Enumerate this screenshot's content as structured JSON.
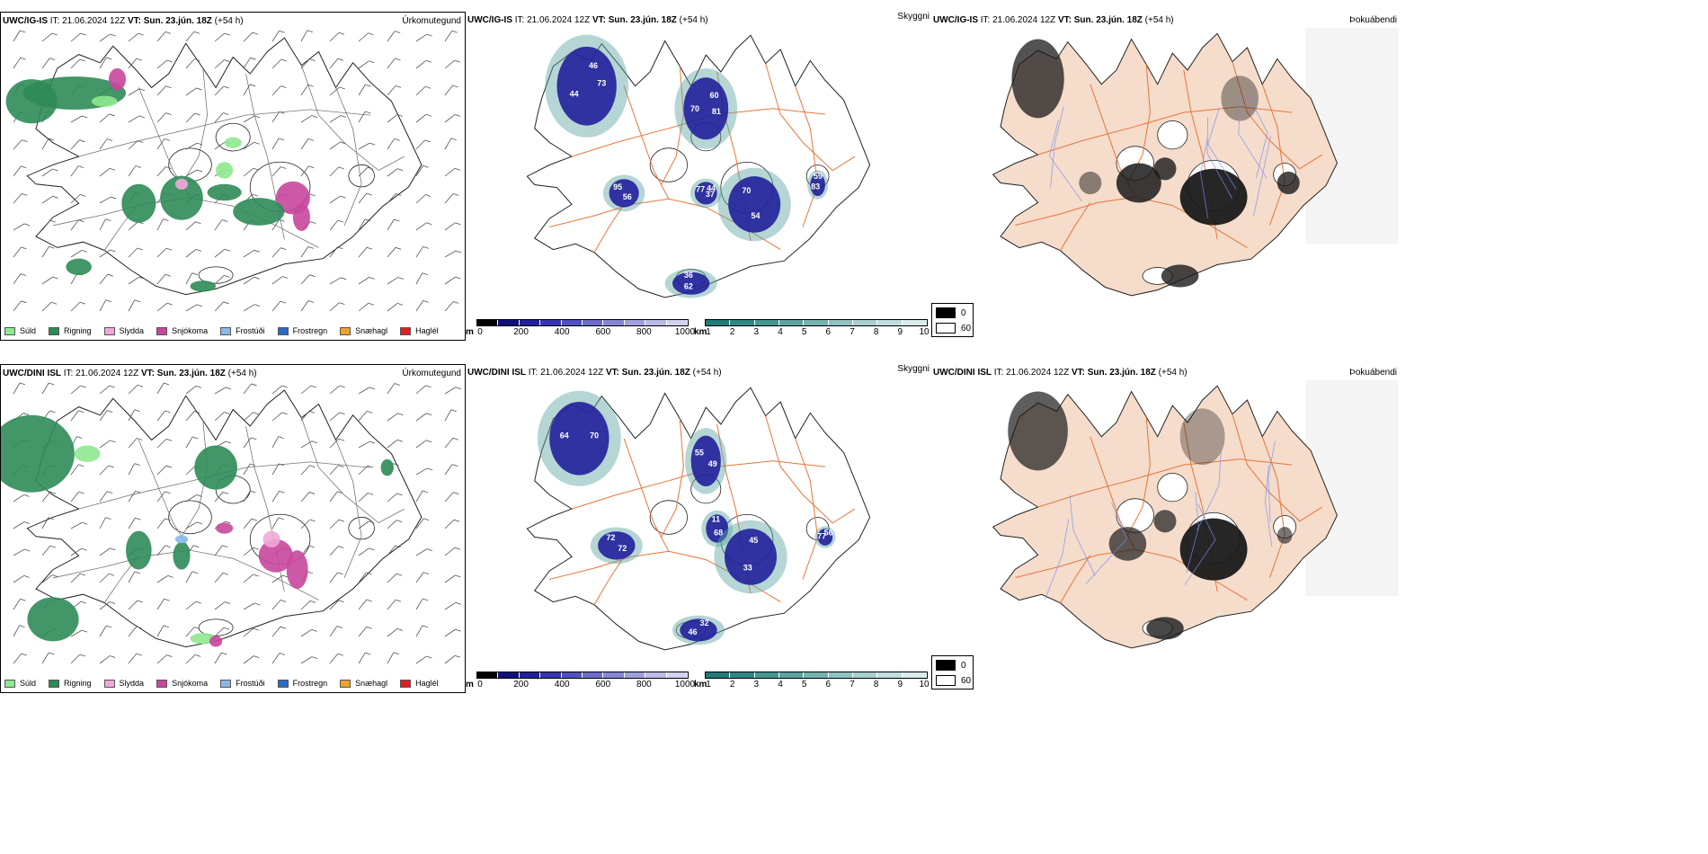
{
  "colors": {
    "drizzle": "#8fe88f",
    "rain": "#2e8b57",
    "sleet": "#f0a8d8",
    "snow": "#c8479c",
    "freezing_drizzle": "#8ab8ea",
    "freezing_rain": "#2c6bc4",
    "snow_grains": "#f0a030",
    "hail": "#e02020",
    "road": "#e8763a",
    "land_tint": "#f5dccb",
    "cloud_shade": "#1a1a1a",
    "coast": "#222222"
  },
  "rows": [
    {
      "model": "UWC/IG-IS",
      "left_title": "Úrkomutegund",
      "mid_title": "Skyggni",
      "right_title": "Þokuábendi",
      "visibility_labels": [
        "73",
        "81",
        "37",
        "56",
        "54",
        "62",
        "83",
        "44",
        "70",
        "77",
        "95",
        "70",
        "36",
        "59",
        "46",
        "60",
        "44"
      ]
    },
    {
      "model": "UWC/DINI ISL",
      "left_title": "Úrkomutegund",
      "mid_title": "Skyggni",
      "right_title": "Þokuábendi",
      "visibility_labels": [
        "70",
        "49",
        "72",
        "68",
        "33",
        "46",
        "77",
        "64",
        "55",
        "72",
        "11",
        "45",
        "32",
        "56"
      ]
    }
  ],
  "time": {
    "it_label": "IT:",
    "it_value": "21.06.2024 12Z",
    "vt_label": "VT:",
    "vt_value": "Sun. 23.jún. 18Z",
    "lead": "(+54 h)"
  },
  "precip_legend": [
    {
      "label": "Súld",
      "color_key": "drizzle"
    },
    {
      "label": "Rigning",
      "color_key": "rain"
    },
    {
      "label": "Slydda",
      "color_key": "sleet"
    },
    {
      "label": "Snjókoma",
      "color_key": "snow"
    },
    {
      "label": "Frostúði",
      "color_key": "freezing_drizzle"
    },
    {
      "label": "Frostregn",
      "color_key": "freezing_rain"
    },
    {
      "label": "Snæhagl",
      "color_key": "snow_grains"
    },
    {
      "label": "Haglél",
      "color_key": "hail"
    }
  ],
  "height_colorbar": {
    "unit": "m",
    "ticks": [
      "0",
      "200",
      "400",
      "600",
      "800",
      "1000"
    ],
    "colors": [
      "#000000",
      "#10107a",
      "#20209a",
      "#3535b0",
      "#5050c0",
      "#6b6bcc",
      "#8686d6",
      "#a0a0de",
      "#bbbbe8",
      "#d2d2f0"
    ]
  },
  "visibility_colorbar": {
    "unit": "km",
    "ticks": [
      "1",
      "2",
      "3",
      "4",
      "5",
      "6",
      "7",
      "8",
      "9",
      "10"
    ],
    "colors": [
      "#1f7a78",
      "#2e8885",
      "#449694",
      "#5ca4a2",
      "#76b3b1",
      "#8fc2c0",
      "#a8d0cf",
      "#c0dedd",
      "#d8ecec"
    ]
  },
  "fog_legend": [
    {
      "label": "0",
      "color": "#000000"
    },
    {
      "label": "60",
      "color": "#ffffff"
    }
  ]
}
